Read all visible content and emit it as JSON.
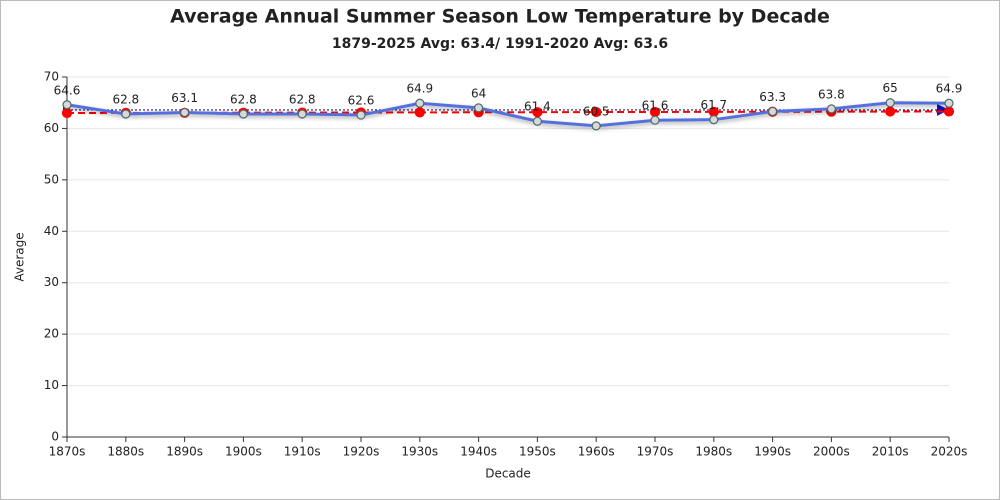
{
  "chart_data": {
    "type": "line",
    "title": "Average Annual Summer Season Low Temperature by Decade",
    "subtitle": "1879-2025 Avg: 63.4/ 1991-2020 Avg: 63.6",
    "x_label": "Decade",
    "y_label": "Average",
    "categories": [
      "1870s",
      "1880s",
      "1890s",
      "1900s",
      "1910s",
      "1920s",
      "1930s",
      "1940s",
      "1950s",
      "1960s",
      "1970s",
      "1980s",
      "1990s",
      "2000s",
      "2010s",
      "2020s"
    ],
    "series": [
      {
        "color": "#5470dc",
        "dash": "solid",
        "data_labels": true,
        "values": [
          64.6,
          62.8,
          63.1,
          62.8,
          62.8,
          62.6,
          64.9,
          64,
          61.4,
          60.5,
          61.6,
          61.7,
          63.3,
          63.8,
          65,
          64.9
        ]
      },
      {
        "color": "#ff0000",
        "dash": "dashed",
        "data_labels": false,
        "values": [
          63.0,
          63.02,
          63.04,
          63.06,
          63.08,
          63.1,
          63.12,
          63.14,
          63.16,
          63.18,
          63.2,
          63.22,
          63.24,
          63.26,
          63.28,
          63.3
        ]
      }
    ],
    "reference_lines": [
      {
        "value": 63.6,
        "color": "#1a1a70"
      }
    ],
    "ylim": [
      0,
      70
    ],
    "yticks": [
      0,
      10,
      20,
      30,
      40,
      50,
      60,
      70
    ],
    "grid": true
  }
}
